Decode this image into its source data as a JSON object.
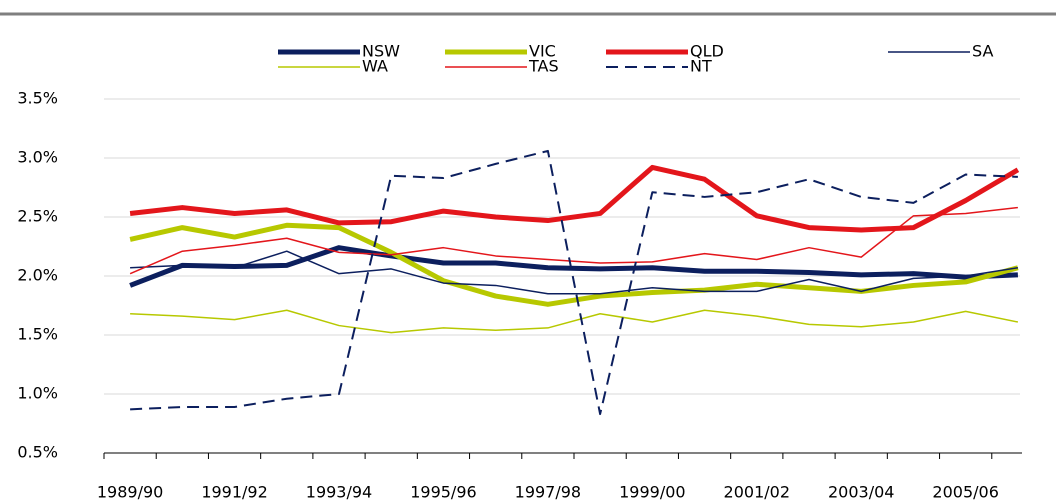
{
  "chart_data": {
    "type": "line",
    "categories": [
      "1989/90",
      null,
      "1991/92",
      null,
      "1993/94",
      null,
      "1995/96",
      null,
      "1997/98",
      null,
      "1999/00",
      null,
      "2001/02",
      null,
      "2003/04",
      null,
      "2005/06",
      null
    ],
    "series": [
      {
        "name": "NSW",
        "color": "#0c1f5e",
        "width": 5,
        "dash": false,
        "values": [
          1.92,
          2.09,
          2.08,
          2.09,
          2.24,
          2.17,
          2.11,
          2.11,
          2.07,
          2.06,
          2.07,
          2.04,
          2.04,
          2.03,
          2.01,
          2.02,
          1.99,
          2.01
        ]
      },
      {
        "name": "VIC",
        "color": "#b7c800",
        "width": 5,
        "dash": false,
        "values": [
          2.31,
          2.41,
          2.33,
          2.43,
          2.41,
          2.2,
          1.96,
          1.83,
          1.76,
          1.83,
          1.86,
          1.88,
          1.93,
          1.9,
          1.87,
          1.92,
          1.95,
          2.07
        ]
      },
      {
        "name": "QLD",
        "color": "#e3161b",
        "width": 5,
        "dash": false,
        "values": [
          2.53,
          2.58,
          2.53,
          2.56,
          2.45,
          2.46,
          2.55,
          2.5,
          2.47,
          2.53,
          2.92,
          2.82,
          2.51,
          2.41,
          2.39,
          2.41,
          2.64,
          2.9
        ]
      },
      {
        "name": "SA",
        "color": "#0c1f5e",
        "width": 1.5,
        "dash": false,
        "values": [
          2.07,
          2.09,
          2.07,
          2.21,
          2.02,
          2.06,
          1.94,
          1.92,
          1.85,
          1.85,
          1.9,
          1.87,
          1.87,
          1.97,
          1.87,
          1.98,
          2.0,
          2.07
        ]
      },
      {
        "name": "WA",
        "color": "#b7c800",
        "width": 1.5,
        "dash": false,
        "values": [
          1.68,
          1.66,
          1.63,
          1.71,
          1.58,
          1.52,
          1.56,
          1.54,
          1.56,
          1.68,
          1.61,
          1.71,
          1.66,
          1.59,
          1.57,
          1.61,
          1.7,
          1.61
        ]
      },
      {
        "name": "TAS",
        "color": "#e3161b",
        "width": 1.5,
        "dash": false,
        "values": [
          2.02,
          2.21,
          2.26,
          2.32,
          2.2,
          2.18,
          2.24,
          2.17,
          2.14,
          2.11,
          2.12,
          2.19,
          2.14,
          2.24,
          2.16,
          2.51,
          2.53,
          2.58
        ]
      },
      {
        "name": "NT",
        "color": "#0c1f5e",
        "width": 2,
        "dash": true,
        "values": [
          0.87,
          0.89,
          0.89,
          0.96,
          1.0,
          2.85,
          2.83,
          2.95,
          3.06,
          0.83,
          2.71,
          2.67,
          2.71,
          2.82,
          2.67,
          2.62,
          2.86,
          2.84
        ]
      }
    ],
    "ylim": [
      0.5,
      3.5
    ],
    "yticks": [
      {
        "value": 0.5,
        "label": "0.5%"
      },
      {
        "value": 1.0,
        "label": "1.0%"
      },
      {
        "value": 1.5,
        "label": "1.5%"
      },
      {
        "value": 2.0,
        "label": "2.0%"
      },
      {
        "value": 2.5,
        "label": "2.5%"
      },
      {
        "value": 3.0,
        "label": "3.0%"
      },
      {
        "value": 3.5,
        "label": "3.5%"
      }
    ],
    "grid": true,
    "legend": "top"
  }
}
